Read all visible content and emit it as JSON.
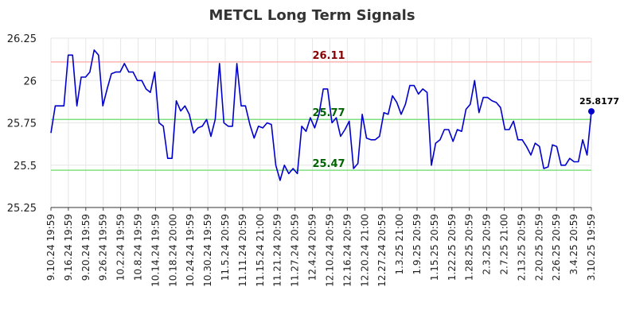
{
  "chart_data": {
    "type": "line",
    "title": "METCL Long Term Signals",
    "xlabel": "",
    "ylabel": "",
    "ylim": [
      25.25,
      26.25
    ],
    "yticks": [
      "25.25",
      "25.5",
      "25.75",
      "26",
      "26.25"
    ],
    "grid": true,
    "x_tick_labels": [
      "9.10.24 19:59",
      "9.16.24 19:59",
      "9.20.24 19:59",
      "9.26.24 19:59",
      "10.2.24 19:59",
      "10.8.24 19:59",
      "10.14.24 19:59",
      "10.18.24 20:00",
      "10.24.24 19:59",
      "10.30.24 19:59",
      "11.5.24 20:59",
      "11.11.24 20:59",
      "11.15.24 21:00",
      "11.21.24 20:59",
      "11.27.24 20:59",
      "12.4.24 20:59",
      "12.10.24 20:59",
      "12.16.24 20:59",
      "12.20.24 21:00",
      "12.27.24 20:59",
      "1.3.25 21:00",
      "1.9.25 20:59",
      "1.15.25 20:59",
      "1.22.25 20:59",
      "1.28.25 20:59",
      "2.3.25 20:59",
      "2.7.25 21:00",
      "2.13.25 20:59",
      "2.20.25 20:59",
      "2.26.25 20:59",
      "3.4.25 20:59",
      "3.10.25 19:59"
    ],
    "series": [
      {
        "name": "",
        "color": "#0000cc",
        "values": [
          25.69,
          25.85,
          25.85,
          25.85,
          26.15,
          26.15,
          25.85,
          26.02,
          26.02,
          26.05,
          26.18,
          26.15,
          25.85,
          25.95,
          26.04,
          26.05,
          26.05,
          26.1,
          26.05,
          26.05,
          26.0,
          26.0,
          25.95,
          25.93,
          26.05,
          25.75,
          25.73,
          25.54,
          25.54,
          25.88,
          25.82,
          25.85,
          25.8,
          25.69,
          25.72,
          25.73,
          25.77,
          25.67,
          25.77,
          26.1,
          25.75,
          25.73,
          25.73,
          26.1,
          25.85,
          25.85,
          25.74,
          25.66,
          25.73,
          25.72,
          25.75,
          25.74,
          25.5,
          25.41,
          25.5,
          25.45,
          25.48,
          25.45,
          25.73,
          25.7,
          25.78,
          25.72,
          25.8,
          25.95,
          25.95,
          25.75,
          25.78,
          25.67,
          25.71,
          25.76,
          25.48,
          25.51,
          25.8,
          25.66,
          25.65,
          25.65,
          25.67,
          25.81,
          25.8,
          25.91,
          25.87,
          25.8,
          25.86,
          25.97,
          25.97,
          25.92,
          25.95,
          25.93,
          25.5,
          25.63,
          25.65,
          25.71,
          25.71,
          25.64,
          25.71,
          25.7,
          25.83,
          25.86,
          26.0,
          25.81,
          25.9,
          25.9,
          25.88,
          25.87,
          25.84,
          25.71,
          25.71,
          25.76,
          25.65,
          25.65,
          25.61,
          25.56,
          25.63,
          25.61,
          25.48,
          25.49,
          25.62,
          25.61,
          25.5,
          25.5,
          25.54,
          25.52,
          25.52,
          25.65,
          25.56,
          25.8177
        ]
      }
    ],
    "hlines": [
      {
        "value": 26.11,
        "label": "26.11",
        "color": "#ffb3b3",
        "label_color": "#8b0000"
      },
      {
        "value": 25.77,
        "label": "25.77",
        "color": "#80e080",
        "label_color": "#006400"
      },
      {
        "value": 25.47,
        "label": "25.47",
        "color": "#80e080",
        "label_color": "#006400"
      }
    ],
    "last_point_label": "25.8177"
  }
}
